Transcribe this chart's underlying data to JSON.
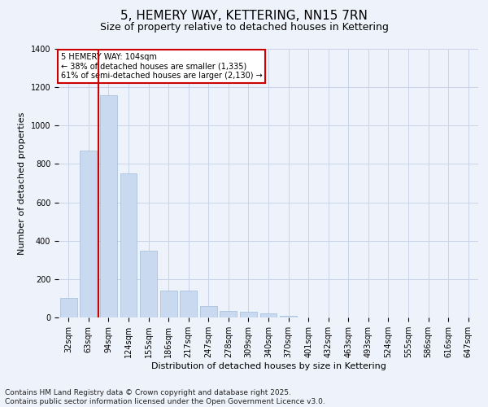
{
  "title": "5, HEMERY WAY, KETTERING, NN15 7RN",
  "subtitle": "Size of property relative to detached houses in Kettering",
  "xlabel": "Distribution of detached houses by size in Kettering",
  "ylabel": "Number of detached properties",
  "categories": [
    "32sqm",
    "63sqm",
    "94sqm",
    "124sqm",
    "155sqm",
    "186sqm",
    "217sqm",
    "247sqm",
    "278sqm",
    "309sqm",
    "340sqm",
    "370sqm",
    "401sqm",
    "432sqm",
    "463sqm",
    "493sqm",
    "524sqm",
    "555sqm",
    "586sqm",
    "616sqm",
    "647sqm"
  ],
  "values": [
    100,
    870,
    1160,
    750,
    350,
    140,
    140,
    60,
    35,
    30,
    20,
    10,
    0,
    0,
    0,
    0,
    0,
    0,
    0,
    0,
    0
  ],
  "bar_color": "#c9d9ef",
  "bar_edge_color": "#a0bcd8",
  "grid_color": "#c8d4e8",
  "vline_color": "#cc0000",
  "vline_pos": 1.5,
  "annotation_text": "5 HEMERY WAY: 104sqm\n← 38% of detached houses are smaller (1,335)\n61% of semi-detached houses are larger (2,130) →",
  "annotation_box_color": "#ffffff",
  "annotation_box_edge": "#cc0000",
  "footer": "Contains HM Land Registry data © Crown copyright and database right 2025.\nContains public sector information licensed under the Open Government Licence v3.0.",
  "ylim": [
    0,
    1400
  ],
  "yticks": [
    0,
    200,
    400,
    600,
    800,
    1000,
    1200,
    1400
  ],
  "background_color": "#eef2fa",
  "title_fontsize": 11,
  "subtitle_fontsize": 9,
  "axis_fontsize": 7,
  "ylabel_fontsize": 8,
  "xlabel_fontsize": 8,
  "footer_fontsize": 6.5
}
